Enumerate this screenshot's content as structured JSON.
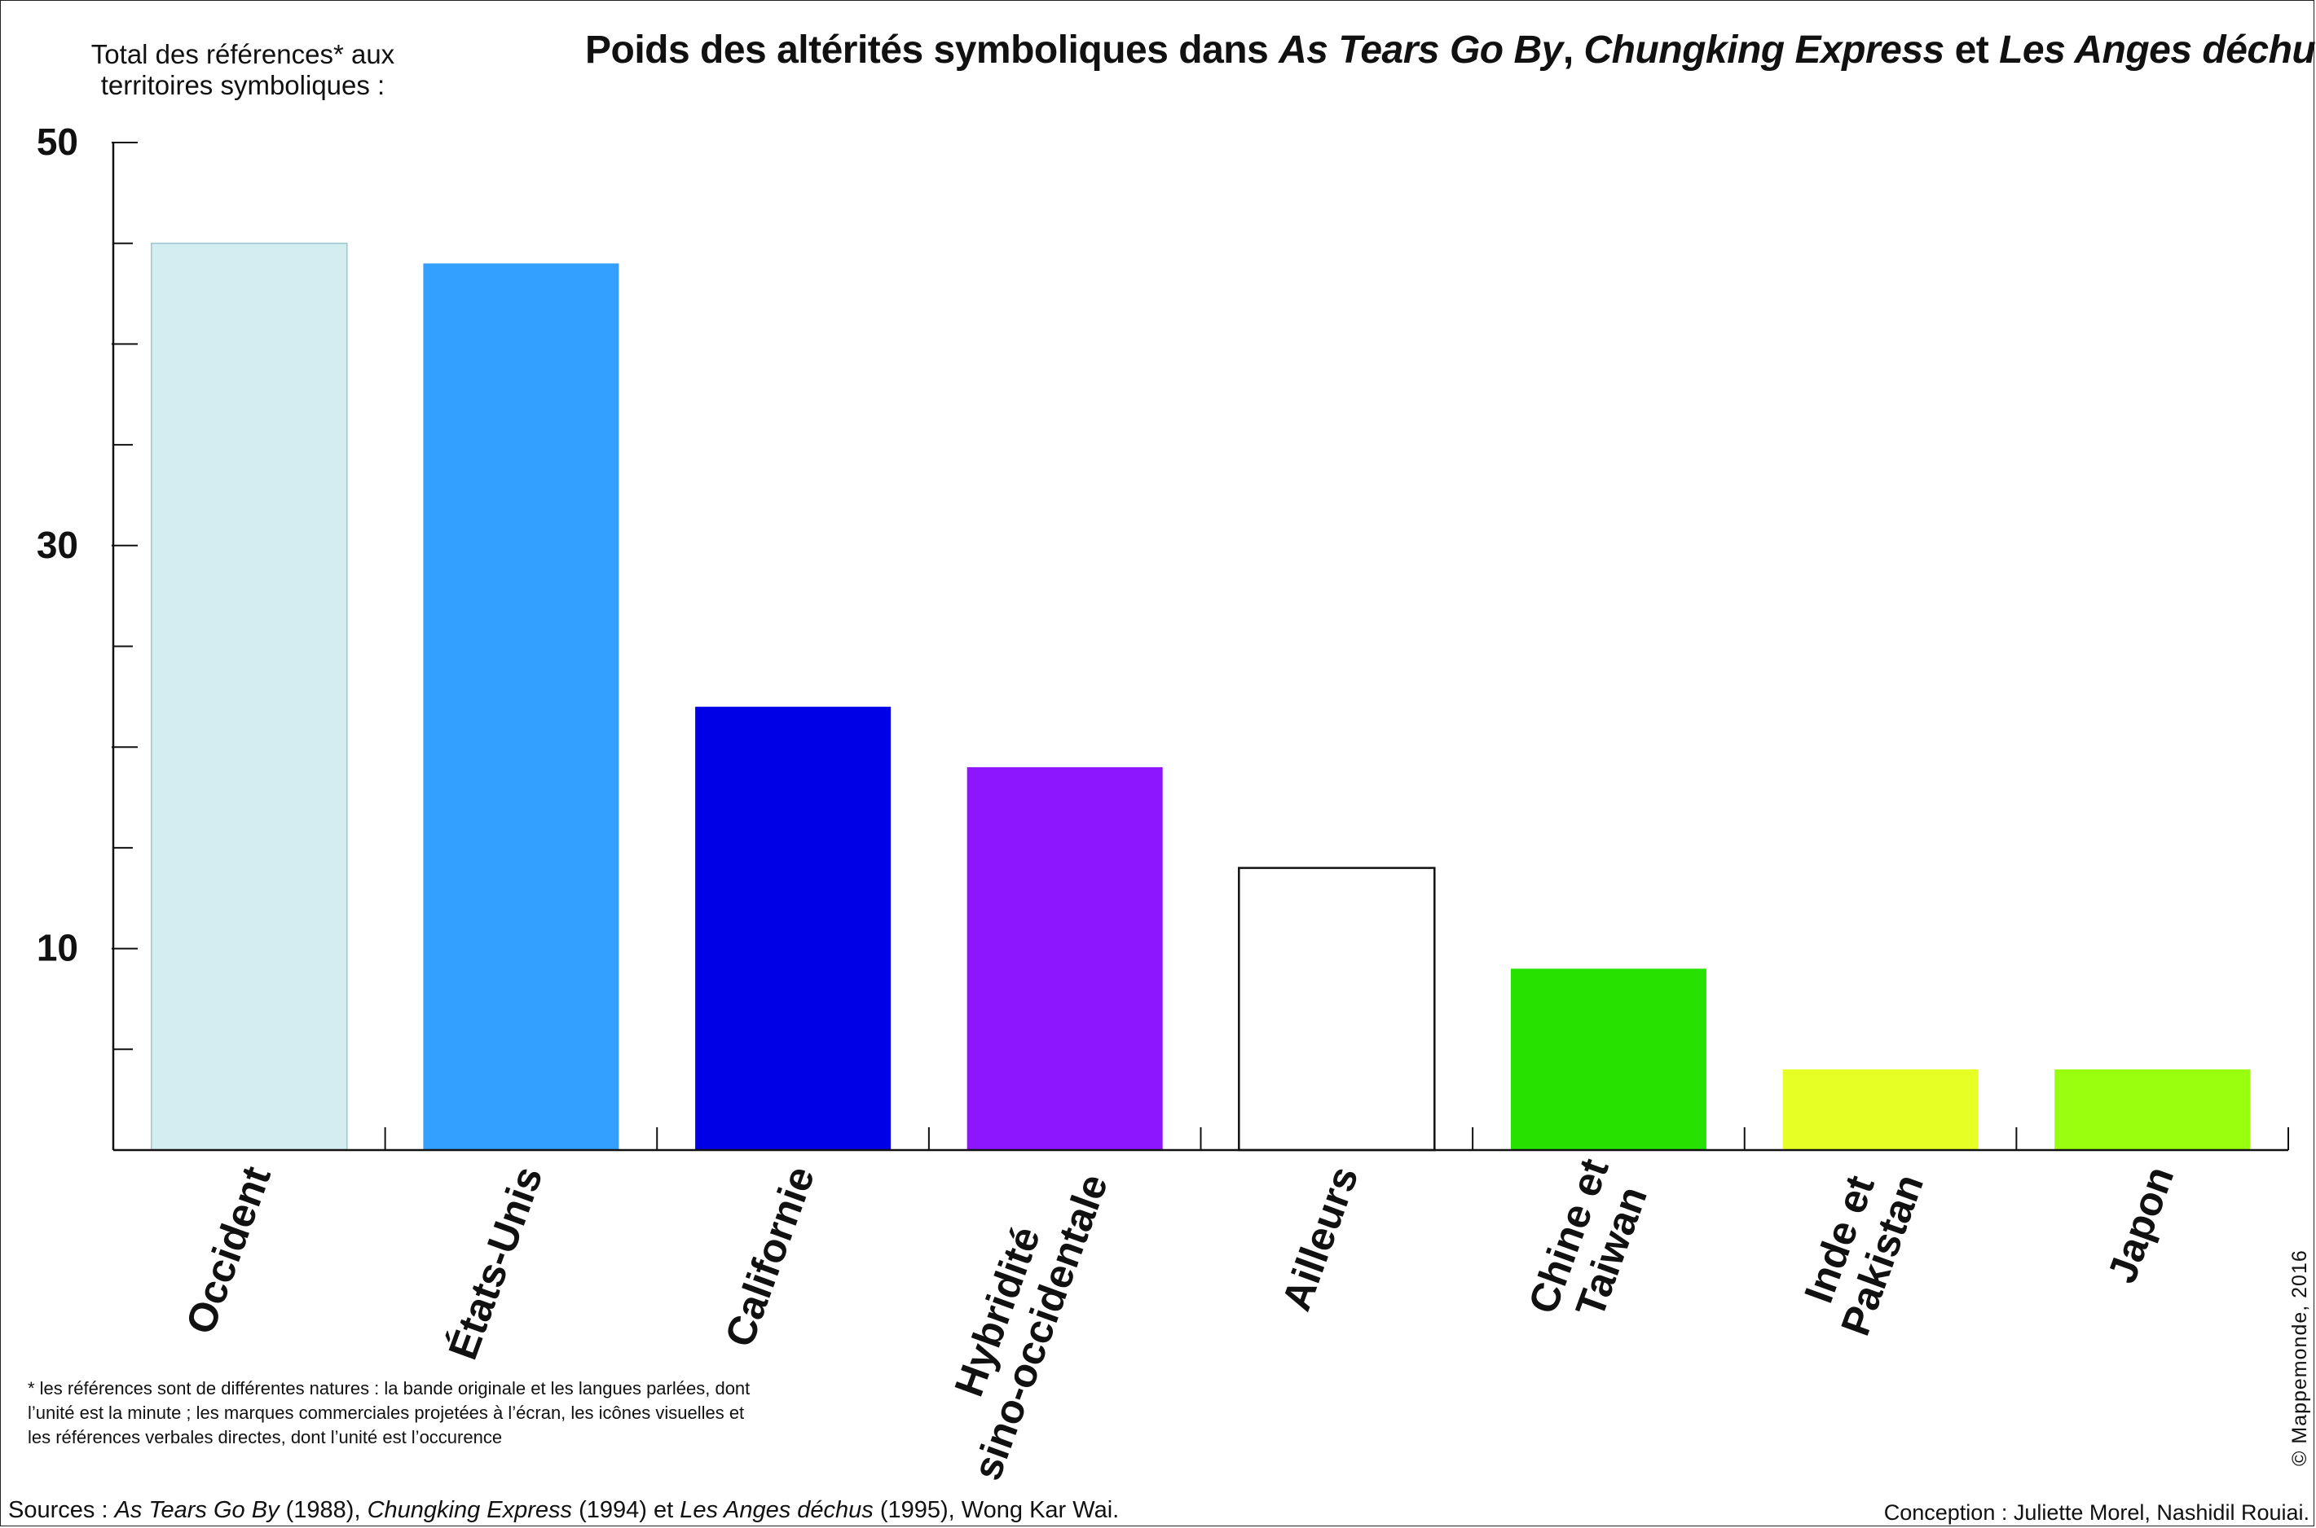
{
  "title": {
    "prefix": "Poids des altérités symboliques dans ",
    "film1": "As Tears Go By",
    "sep1": ", ",
    "film2": "Chungking Express",
    "sep2": " et ",
    "film3": "Les Anges déchus"
  },
  "footnote": "* les références sont de différentes natures : la bande originale et les langues parlées, dont l’unité est la minute ; les marques commerciales projetées à l’écran, les icônes visuelles et les références verbales directes, dont l’unité est l’occurence",
  "sources": {
    "prefix": "Sources : ",
    "film1": "As Tears Go By",
    "year1": " (1988), ",
    "film2": "Chungking Express",
    "year2": " (1994) et ",
    "film3": "Les Anges déchus",
    "year3": " (1995), Wong Kar Wai."
  },
  "credits": "Conception : Juliette Morel, Nashidil Rouiai.",
  "copyright": "© Mappemonde, 2016",
  "chart_data": {
    "type": "bar",
    "title": "Poids des altérités symboliques dans As Tears Go By, Chungking Express et Les Anges déchus",
    "ylabel": "Total des références* aux territoires symboliques :",
    "xlabel": "",
    "ylim": [
      0,
      50
    ],
    "yticks": [
      10,
      30,
      50
    ],
    "categories": [
      "Occident",
      "États-Unis",
      "Californie",
      "Hybridité sino-occidentale",
      "Ailleurs",
      "Chine et Taiwan",
      "Inde et Pakistan",
      "Japon"
    ],
    "category_lines": [
      [
        "Occident"
      ],
      [
        "États-Unis"
      ],
      [
        "Californie"
      ],
      [
        "Hybridité",
        "sino-occidentale"
      ],
      [
        "Ailleurs"
      ],
      [
        "Chine et",
        "Taiwan"
      ],
      [
        "Inde et",
        "Pakistan"
      ],
      [
        "Japon"
      ]
    ],
    "values": [
      45,
      44,
      22,
      19,
      14,
      9,
      4,
      4
    ],
    "colors": [
      "#d2eef0",
      "#33a0ff",
      "#0000e6",
      "#8e16ff",
      "#ffffff",
      "#27e100",
      "#e6ff25",
      "#98ff0e"
    ],
    "grid": false,
    "legend": "none"
  }
}
